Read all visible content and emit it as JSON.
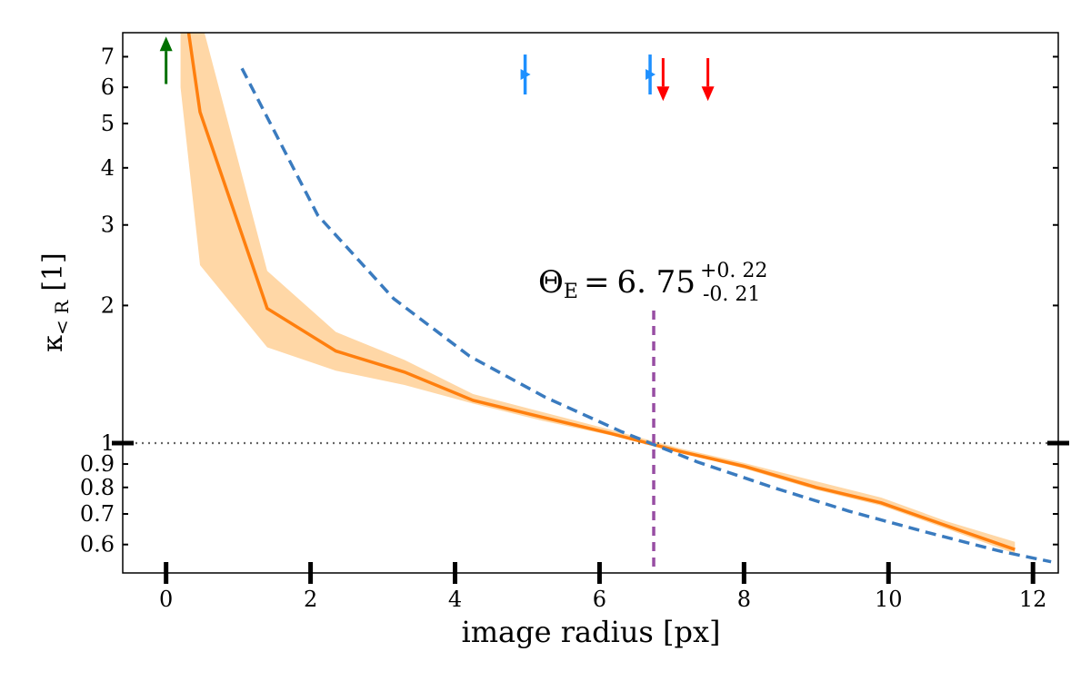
{
  "chart_data": {
    "type": "line",
    "xlabel": "image radius [px]",
    "ylabel": {
      "main": "κ",
      "sub": "< R",
      "unit": "[1]"
    },
    "xlim": [
      -0.6,
      12.35
    ],
    "ylim": [
      0.52,
      7.9
    ],
    "yscale": "log",
    "grid": false,
    "x_ticks": [
      0,
      2,
      4,
      6,
      8,
      10,
      12
    ],
    "y_ticks": [
      {
        "value": 0.6,
        "label": "0.6"
      },
      {
        "value": 0.7,
        "label": "0.7"
      },
      {
        "value": 0.8,
        "label": "0.8"
      },
      {
        "value": 0.9,
        "label": "0.9"
      },
      {
        "value": 1,
        "label": "1"
      },
      {
        "value": 2,
        "label": "2"
      },
      {
        "value": 3,
        "label": "3"
      },
      {
        "value": 4,
        "label": "4"
      },
      {
        "value": 5,
        "label": "5"
      },
      {
        "value": 6,
        "label": "6"
      },
      {
        "value": 7,
        "label": "7"
      }
    ],
    "series": [
      {
        "role": "median",
        "style": "solid",
        "color": "#ff7f0e",
        "x": [
          0.2,
          0.47,
          1.4,
          2.35,
          3.3,
          4.25,
          5.2,
          6.15,
          7.1,
          8.0,
          9.0,
          9.9,
          10.8,
          11.75
        ],
        "y": [
          10.5,
          5.3,
          1.97,
          1.59,
          1.43,
          1.24,
          1.14,
          1.05,
          0.96,
          0.89,
          0.8,
          0.74,
          0.66,
          0.585
        ],
        "band_lower": [
          6.0,
          2.45,
          1.62,
          1.44,
          1.34,
          1.22,
          1.12,
          1.04,
          0.955,
          0.88,
          0.79,
          0.73,
          0.65,
          0.573
        ],
        "band_upper": [
          12.0,
          8.6,
          2.38,
          1.75,
          1.52,
          1.28,
          1.17,
          1.07,
          0.975,
          0.905,
          0.825,
          0.76,
          0.675,
          0.608
        ],
        "band_color": "#ffd7a6"
      },
      {
        "role": "reference",
        "style": "dashed",
        "color": "#3a7bbf",
        "x": [
          1.05,
          2.1,
          3.15,
          4.2,
          5.25,
          6.3,
          7.35,
          8.4,
          9.45,
          10.5,
          11.55,
          12.25
        ],
        "y": [
          6.6,
          3.15,
          2.07,
          1.55,
          1.26,
          1.06,
          0.91,
          0.8,
          0.71,
          0.64,
          0.58,
          0.55
        ]
      }
    ],
    "reference_line": {
      "y": 1,
      "color": "#666666",
      "style": "dotted"
    },
    "einstein_line": {
      "x": 6.75,
      "y_top": 1.95,
      "color": "#984ea3",
      "style": "dashed"
    },
    "annotation": {
      "symbol": "Θ",
      "subscript": "E",
      "equals": "=",
      "value": "6. 75",
      "plus": "+0. 22",
      "minus": "-0. 21",
      "x": 6.75,
      "y": 2.12
    },
    "arrows": [
      {
        "x": 0.0,
        "y_base": 6.1,
        "y_tip": 7.75,
        "color": "#007000",
        "kind": "up"
      },
      {
        "x": 6.88,
        "y_base": 6.95,
        "y_tip": 5.6,
        "color": "#ff0000",
        "kind": "down"
      },
      {
        "x": 7.5,
        "y_base": 6.95,
        "y_tip": 5.6,
        "color": "#ff0000",
        "kind": "down"
      }
    ],
    "markers": [
      {
        "x": 4.97,
        "y": 6.4,
        "color": "#1e90ff"
      },
      {
        "x": 6.7,
        "y": 6.4,
        "color": "#1e90ff"
      }
    ]
  }
}
